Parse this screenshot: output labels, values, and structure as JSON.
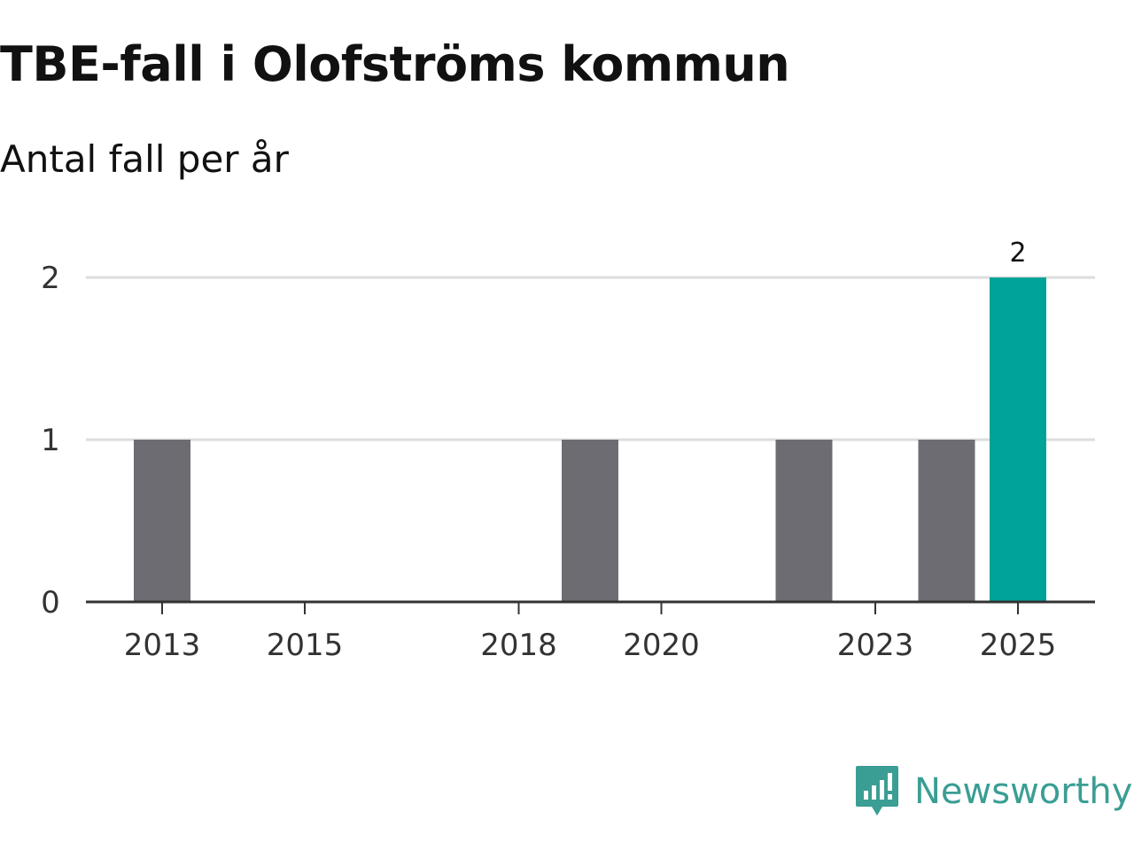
{
  "title": "TBE-fall i Olofströms kommun",
  "subtitle": "Antal fall per år",
  "brand": {
    "name": "Newsworthy",
    "icon": "newsworthy-logo-icon",
    "color": "#3a9e94"
  },
  "colors": {
    "bar": "#6d6c72",
    "highlight": "#00a398",
    "grid": "#dddddd",
    "axis": "#333333"
  },
  "chart_data": {
    "type": "bar",
    "title": "TBE-fall i Olofströms kommun",
    "subtitle": "Antal fall per år",
    "xlabel": "",
    "ylabel": "",
    "categories": [
      "2013",
      "2014",
      "2015",
      "2016",
      "2017",
      "2018",
      "2019",
      "2020",
      "2021",
      "2022",
      "2023",
      "2024",
      "2025"
    ],
    "values": [
      1,
      0,
      0,
      0,
      0,
      0,
      1,
      0,
      0,
      1,
      0,
      1,
      2
    ],
    "highlight_index": 12,
    "x_tick_labels": [
      "2013",
      "2015",
      "2018",
      "2020",
      "2023",
      "2025"
    ],
    "y_ticks": [
      0,
      1,
      2
    ],
    "ylim": [
      0,
      2
    ],
    "grid": true,
    "data_labels": [
      {
        "category": "2025",
        "text": "2"
      }
    ]
  }
}
